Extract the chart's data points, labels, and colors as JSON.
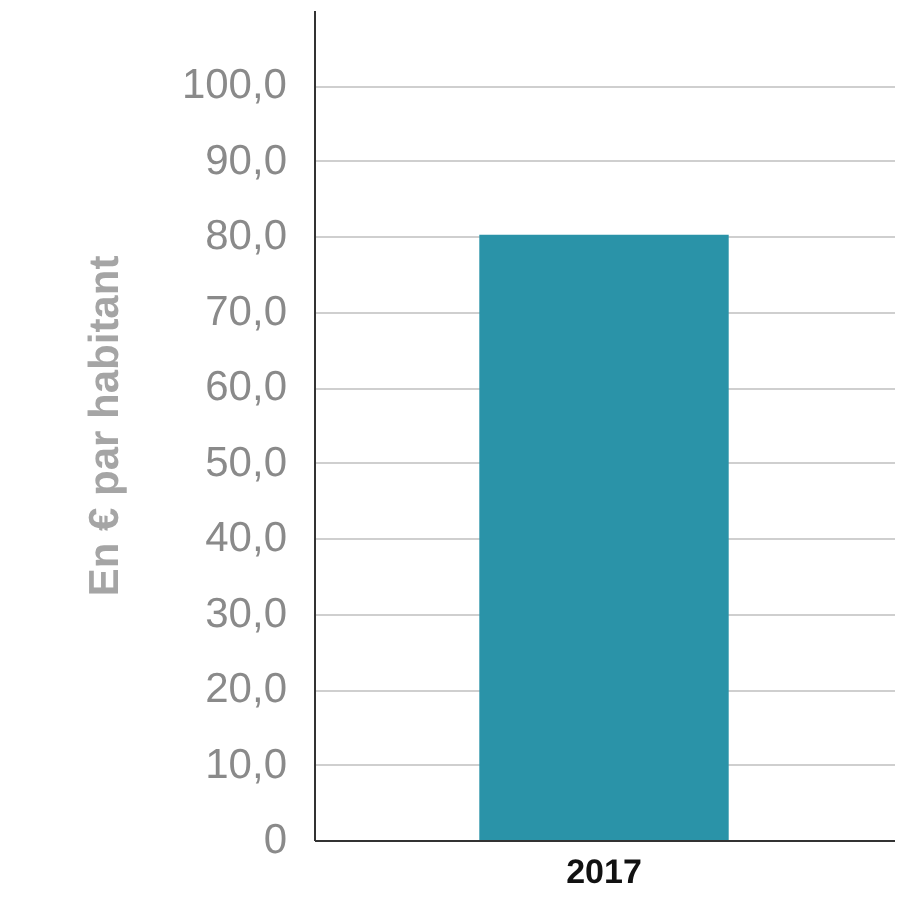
{
  "chart_data": {
    "type": "bar",
    "ylabel": "En € par habitant",
    "categories": [
      "2017"
    ],
    "values": [
      80.2
    ],
    "color": "#2a93a8",
    "ylim": [
      0,
      110
    ],
    "yticks": [
      0,
      {
        "value": 10,
        "label": "10,0"
      },
      {
        "value": 20,
        "label": "20,0"
      },
      {
        "value": 30,
        "label": "30,0"
      },
      {
        "value": 40,
        "label": "40,0"
      },
      {
        "value": 50,
        "label": "50,0"
      },
      {
        "value": 60,
        "label": "60,0"
      },
      {
        "value": 70,
        "label": "70,0"
      },
      {
        "value": 80,
        "label": "80,0"
      },
      {
        "value": 90,
        "label": "90,0"
      },
      {
        "value": 100,
        "label": "100,0"
      }
    ],
    "grid": "y"
  }
}
